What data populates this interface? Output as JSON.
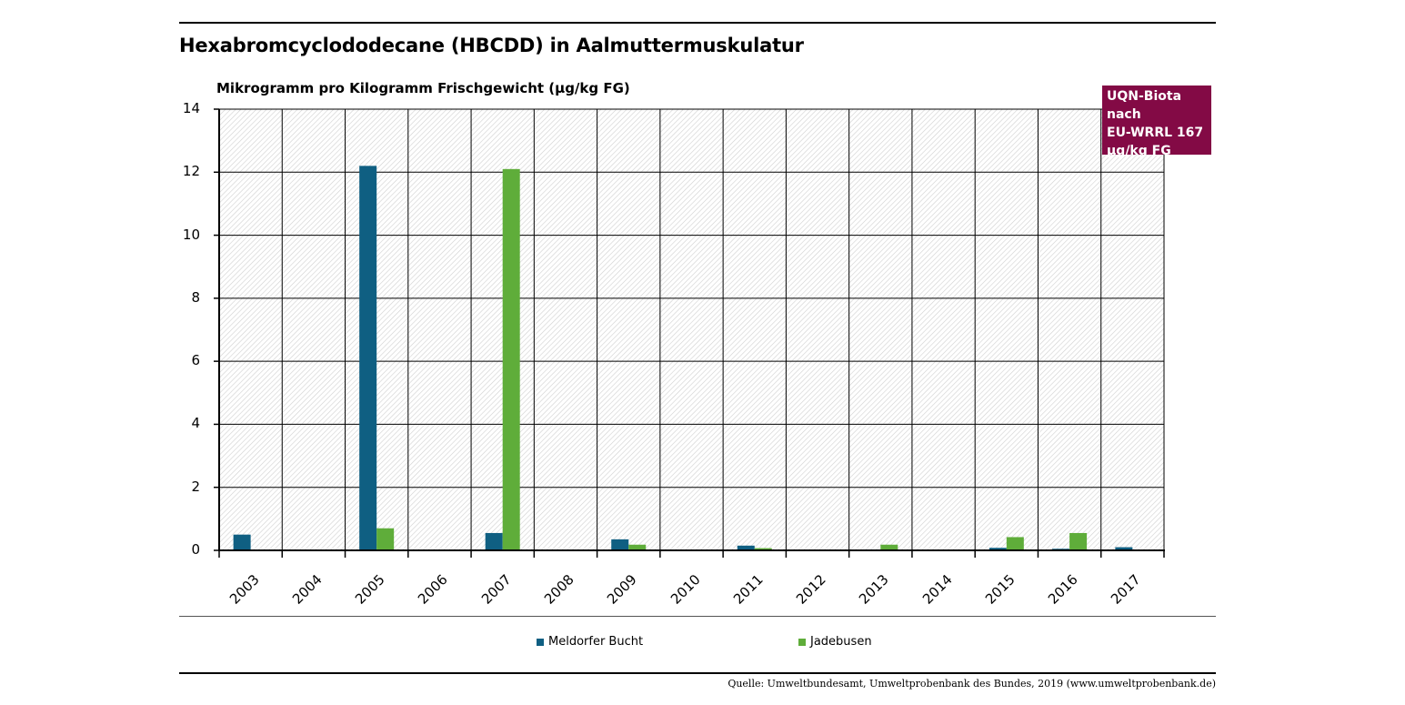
{
  "colors": {
    "meldorfer": "#0f5f82",
    "jadebusen": "#5fad3a",
    "badge_bg": "#830a45"
  },
  "chart_data": {
    "type": "bar",
    "title": "Hexabromcyclododecane (HBCDD) in Aalmuttermuskulatur",
    "ylabel": "Mikrogramm pro Kilogramm Frischgewicht (µg/kg FG)",
    "ylim": [
      0,
      14
    ],
    "yticks": [
      "0",
      "2",
      "4",
      "6",
      "8",
      "10",
      "12",
      "14"
    ],
    "categories": [
      "2003",
      "2004",
      "2005",
      "2006",
      "2007",
      "2008",
      "2009",
      "2010",
      "2011",
      "2012",
      "2013",
      "2014",
      "2015",
      "2016",
      "2017"
    ],
    "series": [
      {
        "name": "Meldorfer Bucht",
        "values": [
          0.5,
          0,
          12.2,
          0,
          0.55,
          0,
          0.35,
          0,
          0.15,
          0,
          0.03,
          0,
          0.08,
          0.05,
          0.1
        ]
      },
      {
        "name": "Jadebusen",
        "values": [
          null,
          null,
          0.7,
          null,
          12.1,
          null,
          0.18,
          null,
          0.07,
          null,
          0.18,
          null,
          0.42,
          0.55,
          null
        ]
      }
    ],
    "grid": true,
    "legend": "bottom",
    "annotation": "UQN-Biota nach EU-WRRL 167 µg/kg FG"
  },
  "annotation_lines": [
    "UQN-Biota nach",
    "EU-WRRL 167",
    "µg/kg FG"
  ],
  "source": "Quelle: Umweltbundesamt, Umweltprobenbank des Bundes, 2019 (www.umweltprobenbank.de)"
}
